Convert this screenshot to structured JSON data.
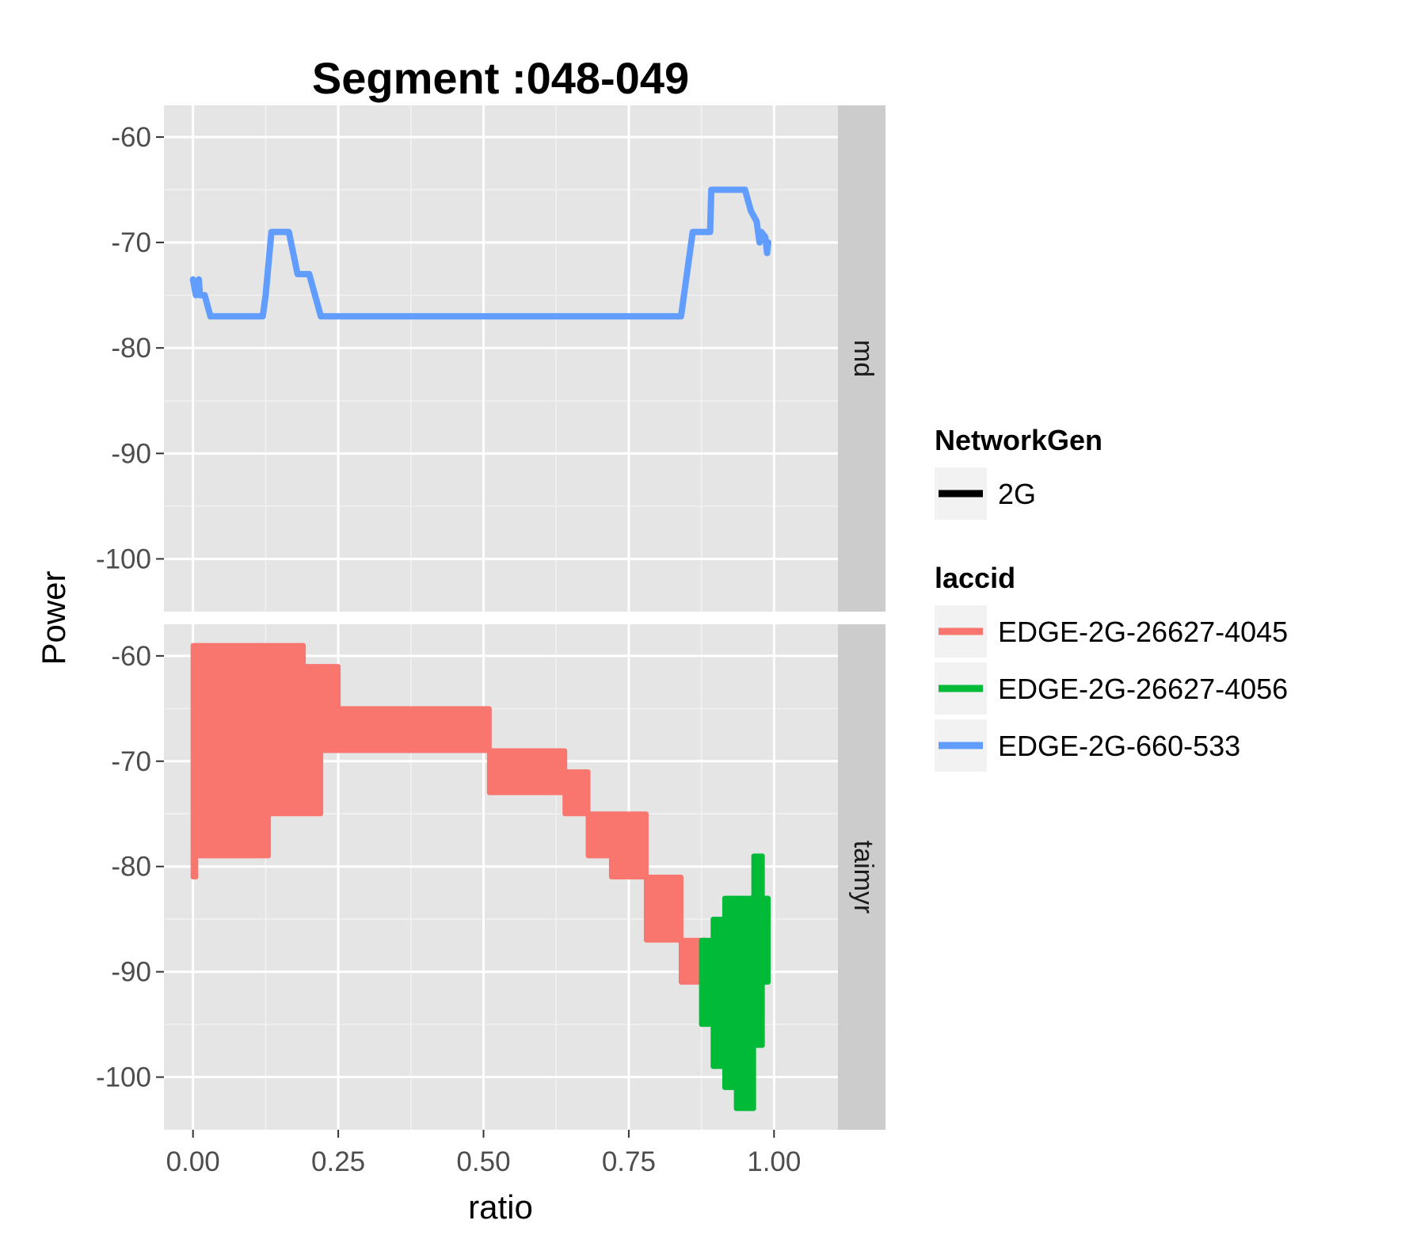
{
  "chart_data": {
    "type": "line",
    "title": "Segment :048-049",
    "xlabel": "ratio",
    "ylabel": "Power",
    "xlim": [
      -0.05,
      1.11
    ],
    "ylim": [
      -105,
      -57
    ],
    "x_ticks": [
      0.0,
      0.25,
      0.5,
      0.75,
      1.0
    ],
    "x_tick_labels": [
      "0.00",
      "0.25",
      "0.50",
      "0.75",
      "1.00"
    ],
    "y_ticks": [
      -60,
      -70,
      -80,
      -90,
      -100
    ],
    "y_tick_labels": [
      "-60",
      "-70",
      "-80",
      "-90",
      "-100"
    ],
    "grid": true,
    "legend_position": "right",
    "facets": [
      {
        "label": "md",
        "series": [
          {
            "laccid": "EDGE-2G-660-533",
            "style": "line",
            "points": [
              [
                0.0,
                -73.5
              ],
              [
                0.005,
                -75
              ],
              [
                0.01,
                -73.5
              ],
              [
                0.012,
                -75
              ],
              [
                0.02,
                -75
              ],
              [
                0.03,
                -77
              ],
              [
                0.12,
                -77
              ],
              [
                0.125,
                -75
              ],
              [
                0.135,
                -69
              ],
              [
                0.165,
                -69
              ],
              [
                0.18,
                -73
              ],
              [
                0.2,
                -73
              ],
              [
                0.22,
                -77
              ],
              [
                0.84,
                -77
              ],
              [
                0.86,
                -69
              ],
              [
                0.89,
                -69
              ],
              [
                0.892,
                -65
              ],
              [
                0.95,
                -65
              ],
              [
                0.96,
                -67
              ],
              [
                0.97,
                -68
              ],
              [
                0.975,
                -70
              ],
              [
                0.978,
                -69
              ],
              [
                0.985,
                -69.5
              ],
              [
                0.988,
                -71
              ],
              [
                0.99,
                -70
              ]
            ]
          }
        ]
      },
      {
        "label": "taimyr",
        "series": [
          {
            "laccid": "EDGE-2G-26627-4045",
            "style": "band",
            "segments": [
              {
                "x": [
                  0.0,
                  0.005
                ],
                "low": -81,
                "high": -59
              },
              {
                "x": [
                  0.005,
                  0.13
                ],
                "low": -79,
                "high": -59
              },
              {
                "x": [
                  0.13,
                  0.19
                ],
                "low": -75,
                "high": -59
              },
              {
                "x": [
                  0.19,
                  0.22
                ],
                "low": -75,
                "high": -61
              },
              {
                "x": [
                  0.22,
                  0.25
                ],
                "low": -69,
                "high": -61
              },
              {
                "x": [
                  0.25,
                  0.51
                ],
                "low": -69,
                "high": -65
              },
              {
                "x": [
                  0.51,
                  0.64
                ],
                "low": -73,
                "high": -69
              },
              {
                "x": [
                  0.64,
                  0.68
                ],
                "low": -75,
                "high": -71
              },
              {
                "x": [
                  0.68,
                  0.72
                ],
                "low": -79,
                "high": -75
              },
              {
                "x": [
                  0.72,
                  0.78
                ],
                "low": -81,
                "high": -75
              },
              {
                "x": [
                  0.78,
                  0.84
                ],
                "low": -87,
                "high": -81
              },
              {
                "x": [
                  0.84,
                  0.88
                ],
                "low": -91,
                "high": -87
              }
            ]
          },
          {
            "laccid": "EDGE-2G-26627-4056",
            "style": "band",
            "segments": [
              {
                "x": [
                  0.875,
                  0.895
                ],
                "low": -95,
                "high": -87
              },
              {
                "x": [
                  0.895,
                  0.915
                ],
                "low": -99,
                "high": -85
              },
              {
                "x": [
                  0.915,
                  0.935
                ],
                "low": -101,
                "high": -83
              },
              {
                "x": [
                  0.935,
                  0.965
                ],
                "low": -103,
                "high": -83
              },
              {
                "x": [
                  0.965,
                  0.98
                ],
                "low": -97,
                "high": -79
              },
              {
                "x": [
                  0.98,
                  0.99
                ],
                "low": -91,
                "high": -83
              }
            ]
          }
        ]
      }
    ],
    "legends": [
      {
        "title": "NetworkGen",
        "entries": [
          {
            "label": "2G",
            "color": "#000000"
          }
        ]
      },
      {
        "title": "laccid",
        "entries": [
          {
            "label": "EDGE-2G-26627-4045",
            "color": "#F8766D"
          },
          {
            "label": "EDGE-2G-26627-4056",
            "color": "#00BA38"
          },
          {
            "label": "EDGE-2G-660-533",
            "color": "#619CFF"
          }
        ]
      }
    ],
    "colors": {
      "panel_bg": "#E5E5E5",
      "grid_major": "#FFFFFF",
      "grid_minor": "#F2F2F2",
      "strip_bg": "#CCCCCC",
      "legend_key_bg": "#F2F2F2"
    }
  }
}
